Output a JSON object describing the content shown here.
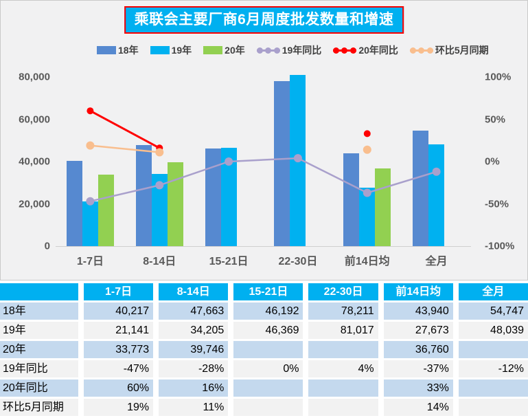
{
  "title": "乘联会主要厂商6月周度批发数量和增速",
  "chart_data": {
    "type": "combo-bar-line",
    "title": "乘联会主要厂商6月周度批发数量和增速",
    "categories": [
      "1-7日",
      "8-14日",
      "15-21日",
      "22-30日",
      "前14日均",
      "全月"
    ],
    "bar_series": [
      {
        "name": "18年",
        "color": "#5689D0",
        "values": [
          40217,
          47663,
          46192,
          78211,
          43940,
          54747
        ]
      },
      {
        "name": "19年",
        "color": "#00B1F0",
        "values": [
          21141,
          34205,
          46369,
          81017,
          27673,
          48039
        ]
      },
      {
        "name": "20年",
        "color": "#92D051",
        "values": [
          33773,
          39746,
          null,
          null,
          36760,
          null
        ]
      }
    ],
    "line_series": [
      {
        "name": "19年同比",
        "color": "#A9A0CC",
        "values": [
          -47,
          -28,
          0,
          4,
          -37,
          -12
        ],
        "marker_r": 6,
        "stroke": 2.5
      },
      {
        "name": "20年同比",
        "color": "#FF0000",
        "values": [
          60,
          16,
          null,
          null,
          33,
          null
        ],
        "marker_r": 5,
        "stroke": 3
      },
      {
        "name": "环比5月同期",
        "color": "#F9BE8E",
        "values": [
          19,
          11,
          null,
          null,
          14,
          null
        ],
        "marker_r": 6,
        "stroke": 2.5
      }
    ],
    "left_axis": {
      "ticks": [
        "80,000",
        "60,000",
        "40,000",
        "20,000",
        "0"
      ],
      "min": 0,
      "max": 80000
    },
    "right_axis": {
      "ticks": [
        "100%",
        "50%",
        "0%",
        "-50%",
        "-100%"
      ],
      "min": -100,
      "max": 100
    },
    "legend_position": "top",
    "grid": "off"
  },
  "table": {
    "columns": [
      "",
      "1-7日",
      "8-14日",
      "15-21日",
      "22-30日",
      "前14日均",
      "全月"
    ],
    "rows": [
      {
        "label": "18年",
        "values": [
          "40,217",
          "47,663",
          "46,192",
          "78,211",
          "43,940",
          "54,747"
        ]
      },
      {
        "label": "19年",
        "values": [
          "21,141",
          "34,205",
          "46,369",
          "81,017",
          "27,673",
          "48,039"
        ]
      },
      {
        "label": "20年",
        "values": [
          "33,773",
          "39,746",
          "",
          "",
          "36,760",
          ""
        ]
      },
      {
        "label": "19年同比",
        "values": [
          "-47%",
          "-28%",
          "0%",
          "4%",
          "-37%",
          "-12%"
        ]
      },
      {
        "label": "20年同比",
        "values": [
          "60%",
          "16%",
          "",
          "",
          "33%",
          ""
        ]
      },
      {
        "label": "环比5月同期",
        "values": [
          "19%",
          "11%",
          "",
          "",
          "14%",
          ""
        ]
      }
    ]
  },
  "colors": {
    "panel_bg": "#F1F1F2",
    "title_bg": "#00B0F0",
    "title_border": "#FF0000",
    "header_bg": "#00B0F0",
    "row_blue": "#C4D9EE",
    "row_gray": "#F2F2F2",
    "axis_text": "#595959"
  }
}
